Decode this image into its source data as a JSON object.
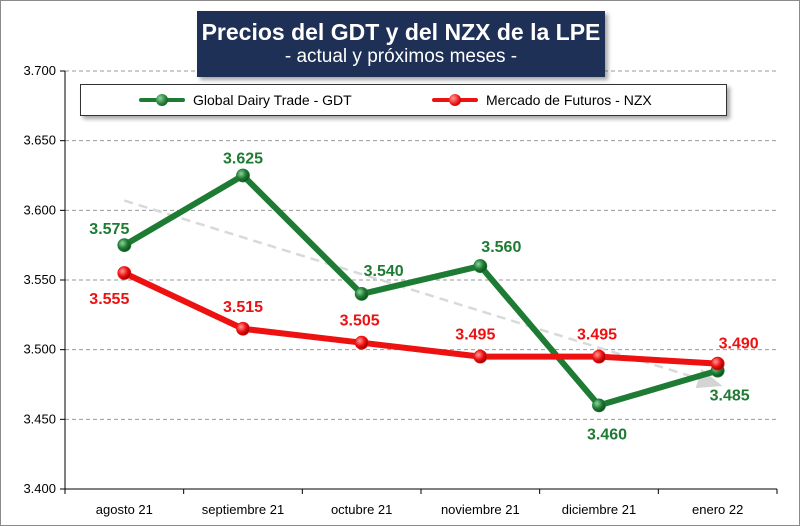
{
  "chart_data": {
    "type": "line",
    "title": "Precios del GDT y del NZX de la LPE",
    "subtitle": "- actual y próximos meses -",
    "categories": [
      "agosto 21",
      "septiembre 21",
      "octubre 21",
      "noviembre 21",
      "diciembre 21",
      "enero 22"
    ],
    "ylim": [
      3400,
      3700
    ],
    "ytick_values": [
      3400,
      3450,
      3500,
      3550,
      3600,
      3650,
      3700
    ],
    "ytick_labels": [
      "3.400",
      "3.450",
      "3.500",
      "3.550",
      "3.600",
      "3.650",
      "3.700"
    ],
    "grid": true,
    "legend_position": "top",
    "series": [
      {
        "name": "Global Dairy Trade - GDT",
        "color": "#1e7b34",
        "values": [
          3575,
          3625,
          3540,
          3560,
          3460,
          3485
        ],
        "labels": [
          "3.575",
          "3.625",
          "3.540",
          "3.560",
          "3.460",
          "3.485"
        ]
      },
      {
        "name": "Mercado de Futuros - NZX",
        "color": "#ee1111",
        "values": [
          3555,
          3515,
          3505,
          3495,
          3495,
          3490
        ],
        "labels": [
          "3.555",
          "3.515",
          "3.505",
          "3.495",
          "3.495",
          "3.490"
        ]
      }
    ],
    "trendline": {
      "style": "dashed-arrow",
      "color": "#d9d9d9",
      "from": {
        "x": "agosto 21",
        "y": 3607
      },
      "to": {
        "x": "enero 22",
        "y": 3475
      }
    }
  }
}
